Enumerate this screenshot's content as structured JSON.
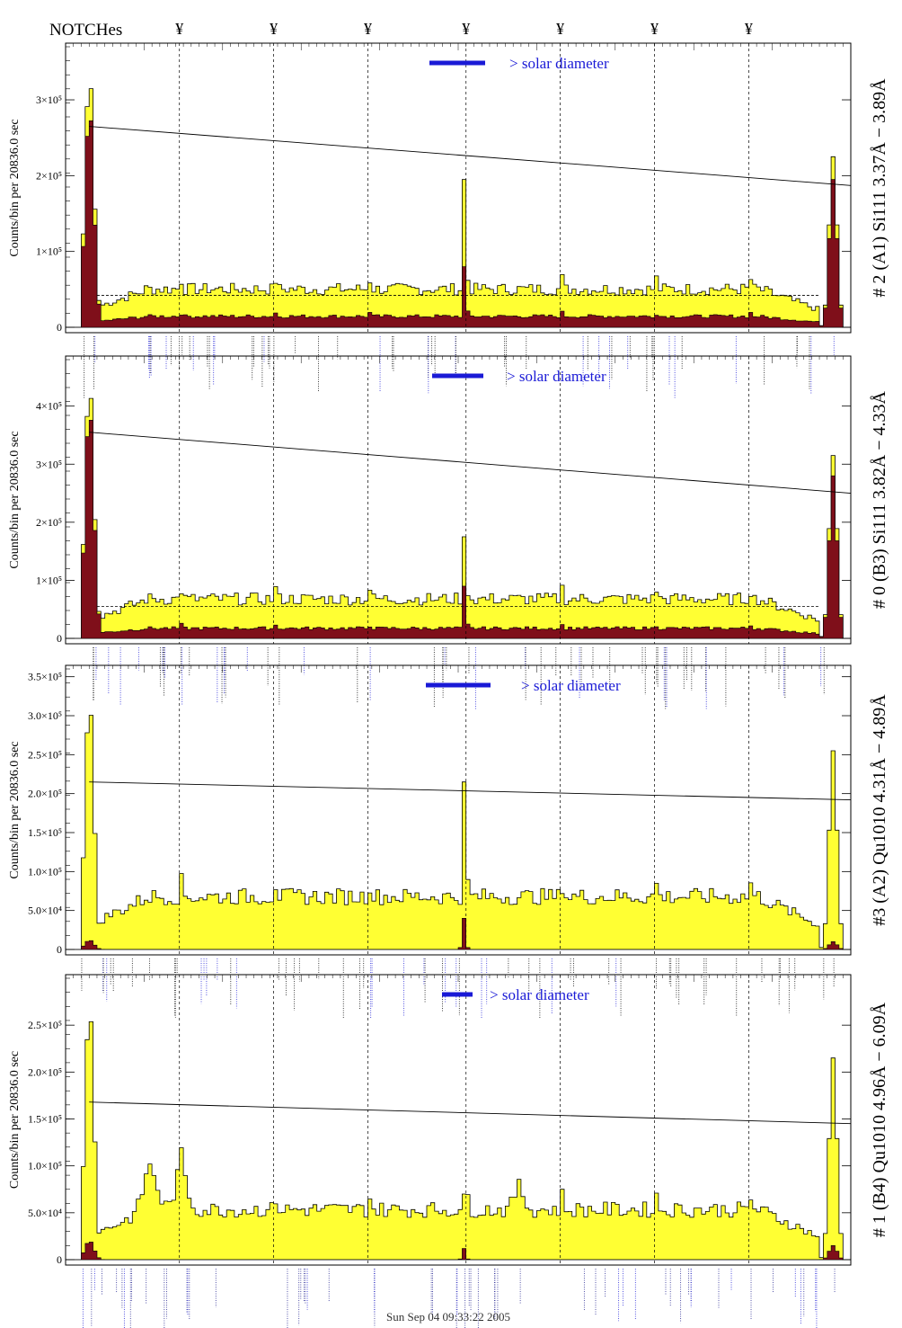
{
  "header": {
    "notches_label": "NOTCHes",
    "notch_symbol": "¥"
  },
  "footer": {
    "timestamp": "Sun Sep 04 09:33:22 2005"
  },
  "colors": {
    "fill": "#ffff33",
    "dark": "#7f0f1a",
    "legend": "#1a1ad6",
    "line": "#000000"
  },
  "chart_data": [
    {
      "type": "bar",
      "title": "# 2 (A1) Si111  3.37Å − 3.89Å",
      "ylabel": "Counts/bin per  20836.0 sec",
      "legend": "> solar diameter",
      "ylim": [
        0,
        370000
      ],
      "yticks": [
        {
          "value": 0,
          "label": "0"
        },
        {
          "value": 100000,
          "label": "1×10⁵"
        },
        {
          "value": 200000,
          "label": "2×10⁵"
        },
        {
          "value": 300000,
          "label": "3×10⁵"
        }
      ],
      "bins": 200,
      "notch_positions": [
        0.145,
        0.265,
        0.385,
        0.51,
        0.63,
        0.75,
        0.87
      ],
      "fit_line": [
        265000,
        187000
      ],
      "dashed_level": 42000,
      "yellow_profile": {
        "edge_peak_left": 335000,
        "edge_peak_right": 225000,
        "plateau": 52000,
        "center_spike": 195000
      },
      "red_profile": {
        "edge_peak_left": 290000,
        "edge_peak_right": 195000,
        "plateau": 15000,
        "center_spike": 80000
      },
      "annotation_color": "#000000"
    },
    {
      "type": "bar",
      "title": "# 0 (B3) Si111  3.82Å − 4.33Å",
      "ylabel": "Counts/bin per  20836.0 sec",
      "legend": "> solar diameter",
      "ylim": [
        0,
        480000
      ],
      "yticks": [
        {
          "value": 0,
          "label": "0"
        },
        {
          "value": 100000,
          "label": "1×10⁵"
        },
        {
          "value": 200000,
          "label": "2×10⁵"
        },
        {
          "value": 300000,
          "label": "3×10⁵"
        },
        {
          "value": 400000,
          "label": "4×10⁵"
        }
      ],
      "bins": 200,
      "notch_positions": [
        0.145,
        0.265,
        0.385,
        0.51,
        0.63,
        0.75,
        0.87
      ],
      "fit_line": [
        355000,
        250000
      ],
      "dashed_level": 55000,
      "yellow_profile": {
        "edge_peak_left": 440000,
        "edge_peak_right": 315000,
        "plateau": 70000,
        "center_spike": 175000
      },
      "red_profile": {
        "edge_peak_left": 400000,
        "edge_peak_right": 280000,
        "plateau": 18000,
        "center_spike": 90000
      },
      "annotation_color": "#000000"
    },
    {
      "type": "bar",
      "title": "#3 (A2) Qu1010  4.31Å − 4.89Å",
      "ylabel": "Counts/bin per  20836.0 sec",
      "legend": "> solar diameter",
      "ylim": [
        0,
        360000
      ],
      "yticks": [
        {
          "value": 0,
          "label": "0"
        },
        {
          "value": 50000,
          "label": "5.0×10⁴"
        },
        {
          "value": 100000,
          "label": "1.0×10⁵"
        },
        {
          "value": 150000,
          "label": "1.5×10⁵"
        },
        {
          "value": 200000,
          "label": "2.0×10⁵"
        },
        {
          "value": 250000,
          "label": "2.5×10⁵"
        },
        {
          "value": 300000,
          "label": "3.0×10⁵"
        },
        {
          "value": 350000,
          "label": "3.5×10⁵"
        }
      ],
      "bins": 200,
      "notch_positions": [
        0.145,
        0.265,
        0.385,
        0.51,
        0.63,
        0.75,
        0.87
      ],
      "fit_line": [
        215000,
        192000
      ],
      "dashed_level": 0,
      "yellow_profile": {
        "edge_peak_left": 320000,
        "edge_peak_right": 255000,
        "plateau": 70000,
        "center_spike": 215000
      },
      "red_profile": {
        "edge_peak_left": 12000,
        "edge_peak_right": 10000,
        "plateau": 0,
        "center_spike": 40000
      },
      "annotation_color": "#000000"
    },
    {
      "type": "bar",
      "title": "# 1 (B4) Qu1010 4.96Å − 6.09Å",
      "ylabel": "Counts/bin per  20836.0 sec",
      "legend": "> solar diameter",
      "ylim": [
        0,
        300000
      ],
      "yticks": [
        {
          "value": 0,
          "label": "0"
        },
        {
          "value": 50000,
          "label": "5.0×10⁴"
        },
        {
          "value": 100000,
          "label": "1.0×10⁵"
        },
        {
          "value": 150000,
          "label": "1.5×10⁵"
        },
        {
          "value": 200000,
          "label": "2.0×10⁵"
        },
        {
          "value": 250000,
          "label": "2.5×10⁵"
        }
      ],
      "bins": 200,
      "notch_positions": [
        0.145,
        0.265,
        0.385,
        0.51,
        0.63,
        0.75,
        0.87
      ],
      "fit_line": [
        168000,
        145000
      ],
      "dashed_level": 0,
      "yellow_profile": {
        "edge_peak_left": 270000,
        "edge_peak_right": 215000,
        "plateau": 55000,
        "center_spike": 70000
      },
      "red_profile": {
        "edge_peak_left": 20000,
        "edge_peak_right": 15000,
        "plateau": 0,
        "center_spike": 12000
      },
      "annotation_color": "#1a1a8c"
    }
  ]
}
